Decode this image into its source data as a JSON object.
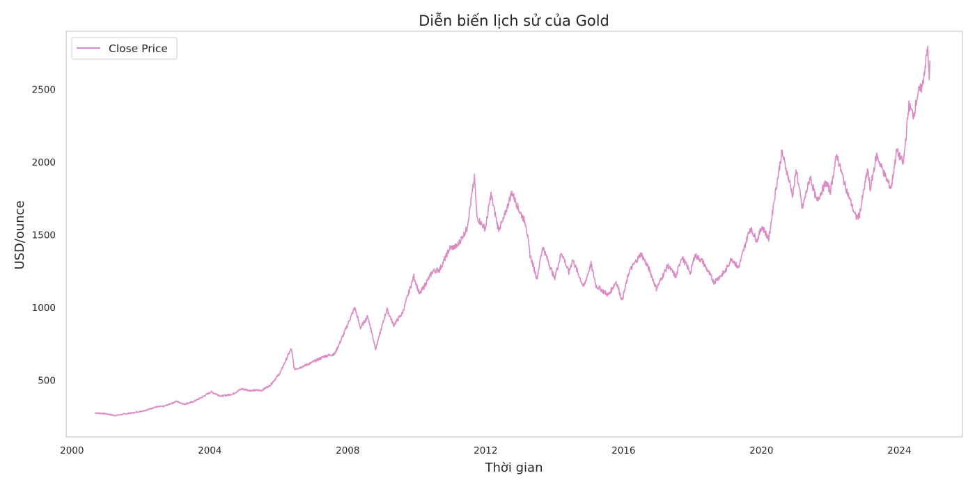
{
  "chart_data": {
    "type": "line",
    "title": "Diễn biến lịch sử của Gold",
    "xlabel": "Thời gian",
    "ylabel": "USD/ounce",
    "x_ticks": [
      "2000",
      "2004",
      "2008",
      "2012",
      "2016",
      "2020",
      "2024"
    ],
    "y_ticks": [
      "500",
      "1000",
      "1500",
      "2000",
      "2500"
    ],
    "xlim": [
      "1999-11-01",
      "2025-11-01"
    ],
    "ylim": [
      110,
      2900
    ],
    "grid": false,
    "legend": {
      "position": "top-left"
    },
    "colors": {
      "series": "#DA8BC3",
      "frame": "#cccccc",
      "text": "#262626"
    },
    "series": [
      {
        "name": "Close Price",
        "x": [
          "2000-08-30",
          "2000-12-15",
          "2001-04-01",
          "2001-07-15",
          "2001-11-01",
          "2002-03-01",
          "2002-06-01",
          "2002-09-01",
          "2003-01-15",
          "2003-04-01",
          "2003-07-01",
          "2003-10-01",
          "2004-01-15",
          "2004-05-01",
          "2004-09-01",
          "2004-12-01",
          "2005-03-01",
          "2005-07-01",
          "2005-10-01",
          "2006-01-15",
          "2006-05-12",
          "2006-06-15",
          "2006-10-01",
          "2007-01-15",
          "2007-05-01",
          "2007-08-15",
          "2007-11-15",
          "2008-03-15",
          "2008-05-15",
          "2008-08-01",
          "2008-10-24",
          "2009-02-20",
          "2009-05-01",
          "2009-08-01",
          "2009-12-02",
          "2010-02-01",
          "2010-06-20",
          "2010-09-01",
          "2010-12-20",
          "2011-03-01",
          "2011-06-15",
          "2011-09-05",
          "2011-10-01",
          "2011-12-29",
          "2012-02-28",
          "2012-05-15",
          "2012-07-01",
          "2012-10-05",
          "2012-12-28",
          "2013-03-01",
          "2013-04-16",
          "2013-06-28",
          "2013-08-28",
          "2013-12-31",
          "2014-03-15",
          "2014-06-01",
          "2014-07-10",
          "2014-11-05",
          "2015-01-22",
          "2015-03-15",
          "2015-07-24",
          "2015-10-15",
          "2015-12-17",
          "2016-03-01",
          "2016-07-06",
          "2016-10-01",
          "2016-12-15",
          "2017-04-15",
          "2017-07-10",
          "2017-09-08",
          "2017-12-12",
          "2018-01-25",
          "2018-04-15",
          "2018-08-16",
          "2018-12-15",
          "2019-02-20",
          "2019-05-01",
          "2019-09-04",
          "2019-11-15",
          "2020-01-08",
          "2020-03-19",
          "2020-05-15",
          "2020-08-06",
          "2020-11-30",
          "2021-01-06",
          "2021-03-08",
          "2021-06-01",
          "2021-08-09",
          "2021-11-15",
          "2022-01-01",
          "2022-03-08",
          "2022-06-01",
          "2022-09-28",
          "2022-11-03",
          "2023-02-01",
          "2023-02-28",
          "2023-05-04",
          "2023-08-20",
          "2023-10-06",
          "2023-12-04",
          "2024-02-14",
          "2024-04-12",
          "2024-06-01",
          "2024-07-17",
          "2024-09-01",
          "2024-10-30",
          "2024-11-14",
          "2024-11-22"
        ],
        "values": [
          275,
          270,
          257,
          268,
          278,
          295,
          315,
          320,
          355,
          335,
          350,
          380,
          420,
          390,
          405,
          440,
          430,
          430,
          465,
          550,
          720,
          575,
          600,
          630,
          665,
          680,
          810,
          1000,
          860,
          940,
          715,
          990,
          880,
          960,
          1215,
          1090,
          1250,
          1260,
          1410,
          1420,
          1540,
          1890,
          1620,
          1540,
          1780,
          1540,
          1590,
          1795,
          1660,
          1580,
          1360,
          1200,
          1420,
          1200,
          1380,
          1240,
          1330,
          1140,
          1300,
          1150,
          1085,
          1180,
          1050,
          1250,
          1370,
          1260,
          1130,
          1290,
          1210,
          1350,
          1240,
          1360,
          1320,
          1175,
          1250,
          1340,
          1270,
          1550,
          1460,
          1560,
          1470,
          1740,
          2070,
          1770,
          1950,
          1680,
          1900,
          1730,
          1860,
          1800,
          2050,
          1850,
          1620,
          1630,
          1950,
          1810,
          2050,
          1880,
          1820,
          2080,
          1990,
          2390,
          2320,
          2480,
          2520,
          2790,
          2560,
          2700
        ]
      }
    ]
  }
}
